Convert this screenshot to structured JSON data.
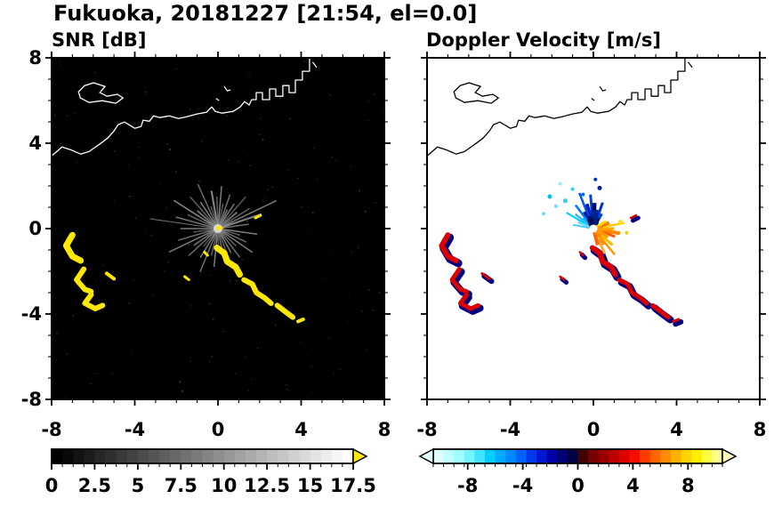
{
  "title": "Fukuoka, 20181227 [21:54, el=0.0]",
  "panels": {
    "snr": {
      "title": "SNR [dB]",
      "bg": "#000000",
      "coast_color": "#ffffff"
    },
    "vel": {
      "title": "Doppler Velocity [m/s]",
      "bg": "#ffffff",
      "coast_color": "#000000"
    }
  },
  "axes": {
    "xlim": [
      -8,
      8
    ],
    "ylim": [
      -8,
      8
    ],
    "xtick_values": [
      -8,
      -4,
      0,
      4,
      8
    ],
    "xtick_labels": [
      "-8",
      "-4",
      "0",
      "4",
      "8"
    ],
    "ytick_values": [
      8,
      4,
      0,
      -4,
      -8
    ],
    "ytick_labels": [
      "8",
      "4",
      "0",
      "-4",
      "-8"
    ],
    "minor_step": 1
  },
  "colorbars": {
    "snr": {
      "range": [
        0,
        17.5
      ],
      "label_values": [
        0,
        2.5,
        5,
        7.5,
        10,
        12.5,
        15,
        17.5
      ],
      "labels": [
        "0",
        "2.5",
        "5",
        "7.5",
        "10",
        "12.5",
        "15",
        "17.5"
      ],
      "over_arrow": "#ffe800",
      "under_arrow": null,
      "segments": [
        "#000000",
        "#090909",
        "#131313",
        "#1c1c1c",
        "#262626",
        "#2f2f2f",
        "#393939",
        "#424242",
        "#4c4c4c",
        "#555555",
        "#5e5e5e",
        "#686868",
        "#717171",
        "#7b7b7b",
        "#848484",
        "#8e8e8e",
        "#979797",
        "#a1a1a1",
        "#aaaaaa",
        "#b3b3b3",
        "#bdbdbd",
        "#c6c6c6",
        "#d0d0d0",
        "#d9d9d9",
        "#e3e3e3",
        "#ececec",
        "#f6f6f6",
        "#ffffff"
      ]
    },
    "vel": {
      "range": [
        -10.5,
        10.5
      ],
      "label_values": [
        -8,
        -4,
        0,
        4,
        8
      ],
      "labels": [
        "-8",
        "-4",
        "0",
        "4",
        "8"
      ],
      "over_arrow": "#ffffbb",
      "under_arrow": "#e4ffff",
      "segments": [
        "#dfffff",
        "#bfffff",
        "#9ffcff",
        "#73f4ff",
        "#40e4ff",
        "#00ccff",
        "#00aaff",
        "#0088ff",
        "#0062ff",
        "#0038f0",
        "#0016d0",
        "#0000aa",
        "#000077",
        "#000044",
        "#440000",
        "#770000",
        "#990000",
        "#bb0000",
        "#dd0000",
        "#f50f00",
        "#ff3c00",
        "#ff6600",
        "#ff8c00",
        "#ffb000",
        "#ffd200",
        "#ffee00",
        "#ffff40",
        "#ffff90"
      ]
    }
  },
  "chart_data": {
    "type": "heatmap",
    "title": "Fukuoka, 20181227 [21:54, el=0.0]",
    "station": "Fukuoka",
    "date": "20181227",
    "time": "21:54",
    "elevation_deg": 0.0,
    "panels": [
      {
        "name": "SNR [dB]",
        "xlim": [
          -8,
          8
        ],
        "ylim": [
          -8,
          8
        ],
        "background": "black",
        "colorbar_range": [
          0,
          17.5
        ],
        "colorbar_ticks": [
          0,
          2.5,
          5,
          7.5,
          10,
          12.5,
          15,
          17.5
        ],
        "colormap": "grayscale with yellow over-range"
      },
      {
        "name": "Doppler Velocity [m/s]",
        "xlim": [
          -8,
          8
        ],
        "ylim": [
          -8,
          8
        ],
        "background": "white",
        "colorbar_range": [
          -10.5,
          10.5
        ],
        "colorbar_ticks": [
          -8,
          -4,
          0,
          4,
          8
        ],
        "colormap": "cyan-blue negative / red-orange-yellow positive"
      }
    ],
    "features": [
      {
        "desc": "radar site ground-clutter starburst",
        "x": 0,
        "y": 0
      },
      {
        "desc": "strong echo band (over-range yellow in SNR, red/navy in velocity)",
        "x_range": [
          -7.3,
          -4.6
        ],
        "y_range": [
          -3.8,
          -0.3
        ]
      },
      {
        "desc": "strong diagonal echo band SE of radar",
        "x_range": [
          0,
          4.1
        ],
        "y_range": [
          -4.4,
          -0.9
        ]
      },
      {
        "desc": "near-radar Doppler couplet: negative (blue) NW, positive (orange) SE",
        "x_range": [
          -2.4,
          1.7
        ],
        "y_range": [
          -1.5,
          2.3
        ]
      },
      {
        "desc": "coastline of Fukuoka bay along top of domain",
        "y_range": [
          3.4,
          8
        ]
      }
    ]
  },
  "geometry": {
    "snr_blob_color": "#ffe800",
    "vel_blob_color": "#dd0000",
    "vel_blob_edge": "#000080",
    "coastline": [
      [
        -8,
        3.4
      ],
      [
        -7.5,
        3.82
      ],
      [
        -7.1,
        3.7
      ],
      [
        -6.6,
        3.49
      ],
      [
        -6.2,
        3.61
      ],
      [
        -5.7,
        3.95
      ],
      [
        -5.3,
        4.24
      ],
      [
        -5.0,
        4.57
      ],
      [
        -4.8,
        4.87
      ],
      [
        -4.5,
        4.99
      ],
      [
        -4.2,
        4.82
      ],
      [
        -4.0,
        4.7
      ],
      [
        -3.7,
        4.78
      ],
      [
        -3.6,
        5.08
      ],
      [
        -3.3,
        5.03
      ],
      [
        -3.1,
        5.28
      ],
      [
        -2.8,
        5.2
      ],
      [
        -2.35,
        5.28
      ],
      [
        -1.9,
        5.16
      ],
      [
        -1.5,
        5.24
      ],
      [
        -1.0,
        5.37
      ],
      [
        -0.55,
        5.45
      ],
      [
        -0.3,
        5.7
      ],
      [
        -0.13,
        5.49
      ],
      [
        0.2,
        5.41
      ],
      [
        0.73,
        5.49
      ],
      [
        1.07,
        5.7
      ],
      [
        1.28,
        5.95
      ],
      [
        1.5,
        5.79
      ],
      [
        1.62,
        6.04
      ],
      [
        1.84,
        6.04
      ],
      [
        1.84,
        6.37
      ],
      [
        2.14,
        6.37
      ],
      [
        2.14,
        6.04
      ],
      [
        2.48,
        6.04
      ],
      [
        2.48,
        6.54
      ],
      [
        2.78,
        6.54
      ],
      [
        2.78,
        6.2
      ],
      [
        3.12,
        6.2
      ],
      [
        3.12,
        6.7
      ],
      [
        3.42,
        6.7
      ],
      [
        3.42,
        6.37
      ],
      [
        3.72,
        6.37
      ],
      [
        3.72,
        6.96
      ],
      [
        4.06,
        6.96
      ],
      [
        4.06,
        7.37
      ],
      [
        4.4,
        7.37
      ],
      [
        4.4,
        8.0
      ]
    ],
    "island": [
      [
        -6.71,
        6.41
      ],
      [
        -6.41,
        6.7
      ],
      [
        -5.98,
        6.83
      ],
      [
        -5.43,
        6.66
      ],
      [
        -5.68,
        6.37
      ],
      [
        -5.34,
        6.2
      ],
      [
        -4.83,
        6.29
      ],
      [
        -4.57,
        6.12
      ],
      [
        -4.91,
        5.87
      ],
      [
        -5.56,
        5.99
      ],
      [
        -6.2,
        5.91
      ],
      [
        -6.62,
        6.12
      ]
    ],
    "coast_extras": [
      [
        [
          0.3,
          6.66
        ],
        [
          0.45,
          6.45
        ],
        [
          0.6,
          6.5
        ]
      ],
      [
        [
          4.55,
          7.8
        ],
        [
          4.75,
          7.55
        ]
      ],
      [
        [
          -0.1,
          6.1
        ],
        [
          0.05,
          6.0
        ]
      ]
    ],
    "snr_streaks": [
      [
        8,
        1.5,
        1.5,
        "#8a8a8a"
      ],
      [
        18,
        2.2,
        2,
        "#a8a8a8"
      ],
      [
        25,
        3.1,
        1.5,
        "#9a9a9a"
      ],
      [
        32,
        1.8,
        1.5,
        "#7a7a7a"
      ],
      [
        40,
        1.2,
        2,
        "#8f8f8f"
      ],
      [
        48,
        2.0,
        1.5,
        "#6f6f6f"
      ],
      [
        56,
        1.4,
        1.5,
        "#999999"
      ],
      [
        63,
        1.0,
        2,
        "#7f7f7f"
      ],
      [
        70,
        1.7,
        1.5,
        "#8a8a8a"
      ],
      [
        78,
        1.2,
        1.5,
        "#6a6a6a"
      ],
      [
        85,
        2.0,
        1.5,
        "#9f9f9f"
      ],
      [
        92,
        1.5,
        1.5,
        "#7a7a7a"
      ],
      [
        100,
        1.8,
        2,
        "#ababab"
      ],
      [
        108,
        1.1,
        1.5,
        "#6a6a6a"
      ],
      [
        115,
        2.3,
        1.5,
        "#8a8a8a"
      ],
      [
        124,
        1.5,
        1.5,
        "#9a9a9a"
      ],
      [
        132,
        2.0,
        1.5,
        "#7a7a7a"
      ],
      [
        140,
        1.3,
        2,
        "#8a8a8a"
      ],
      [
        148,
        2.5,
        1.5,
        "#ababab"
      ],
      [
        156,
        1.6,
        1.5,
        "#7a7a7a"
      ],
      [
        165,
        2.1,
        1.5,
        "#8f8f8f"
      ],
      [
        172,
        3.3,
        1.2,
        "#7a7a7a"
      ],
      [
        180,
        1.8,
        1.5,
        "#9a9a9a"
      ],
      [
        188,
        1.2,
        1.5,
        "#6a6a6a"
      ],
      [
        196,
        2.0,
        1.5,
        "#8a8a8a"
      ],
      [
        205,
        2.6,
        1.5,
        "#9a9a9a"
      ],
      [
        214,
        1.4,
        2,
        "#7a7a7a"
      ],
      [
        222,
        1.9,
        1.5,
        "#8a8a8a"
      ],
      [
        230,
        1.1,
        1.5,
        "#6a6a6a"
      ],
      [
        238,
        1.6,
        1.5,
        "#9a9a9a"
      ],
      [
        247,
        2.2,
        1.5,
        "#8a8a8a"
      ],
      [
        256,
        1.3,
        1.5,
        "#7a7a7a"
      ],
      [
        264,
        1.8,
        1.5,
        "#9a9a9a"
      ],
      [
        272,
        1.1,
        1.5,
        "#6a6a6a"
      ],
      [
        281,
        1.6,
        1.5,
        "#8a8a8a"
      ],
      [
        290,
        2.0,
        1.5,
        "#7a7a7a"
      ],
      [
        299,
        1.3,
        1.5,
        "#9a9a9a"
      ],
      [
        308,
        1.7,
        1.5,
        "#8a8a8a"
      ],
      [
        317,
        1.2,
        1.5,
        "#7a7a7a"
      ],
      [
        326,
        2.0,
        1.5,
        "#9a9a9a"
      ],
      [
        335,
        1.5,
        1.5,
        "#8a8a8a"
      ],
      [
        344,
        1.1,
        1.5,
        "#7a7a7a"
      ],
      [
        352,
        1.9,
        1.5,
        "#9a9a9a"
      ]
    ],
    "snr_blobs": [
      [
        7,
        [
          [
            -7.0,
            -0.3
          ],
          [
            -7.3,
            -0.8
          ],
          [
            -7.0,
            -1.3
          ],
          [
            -6.6,
            -1.5
          ]
        ]
      ],
      [
        6,
        [
          [
            -6.45,
            -1.9
          ],
          [
            -6.8,
            -2.4
          ],
          [
            -6.4,
            -2.85
          ],
          [
            -6.1,
            -2.95
          ]
        ]
      ],
      [
        6,
        [
          [
            -6.1,
            -3.1
          ],
          [
            -6.4,
            -3.5
          ],
          [
            -5.9,
            -3.75
          ],
          [
            -5.55,
            -3.6
          ]
        ]
      ],
      [
        4,
        [
          [
            -5.35,
            -2.1
          ],
          [
            -5.0,
            -2.35
          ]
        ]
      ],
      [
        7,
        [
          [
            -0.05,
            -0.9
          ],
          [
            0.3,
            -1.15
          ],
          [
            0.45,
            -1.55
          ],
          [
            0.85,
            -1.8
          ],
          [
            1.05,
            -2.15
          ]
        ]
      ],
      [
        6,
        [
          [
            1.25,
            -2.4
          ],
          [
            1.65,
            -2.6
          ],
          [
            1.85,
            -3.0
          ],
          [
            2.25,
            -3.25
          ],
          [
            2.55,
            -3.5
          ]
        ]
      ],
      [
        6,
        [
          [
            2.85,
            -3.6
          ],
          [
            3.25,
            -3.9
          ],
          [
            3.6,
            -4.15
          ]
        ]
      ],
      [
        4,
        [
          [
            3.85,
            -4.35
          ],
          [
            4.1,
            -4.25
          ]
        ]
      ],
      [
        3,
        [
          [
            -0.65,
            -1.1
          ],
          [
            -0.5,
            -1.25
          ]
        ]
      ],
      [
        3,
        [
          [
            -1.6,
            -2.25
          ],
          [
            -1.4,
            -2.4
          ]
        ]
      ],
      [
        3,
        [
          [
            1.8,
            0.5
          ],
          [
            2.05,
            0.62
          ]
        ]
      ]
    ],
    "vel_streaks": [
      [
        95,
        1.6,
        3,
        "#0044dd"
      ],
      [
        105,
        1.2,
        4,
        "#0022bb"
      ],
      [
        112,
        1.8,
        2.5,
        "#0055ee"
      ],
      [
        120,
        0.9,
        4,
        "#001a99"
      ],
      [
        128,
        1.4,
        2.5,
        "#0077ff"
      ],
      [
        135,
        0.7,
        3,
        "#00aaff"
      ],
      [
        142,
        1.1,
        2.5,
        "#33bbff"
      ],
      [
        150,
        1.5,
        2,
        "#00ccff"
      ],
      [
        158,
        0.8,
        2.5,
        "#66ddff"
      ],
      [
        88,
        1.2,
        5,
        "#000d66"
      ],
      [
        80,
        0.9,
        4,
        "#001f8f"
      ],
      [
        70,
        1.3,
        3,
        "#0033cc"
      ],
      [
        60,
        0.8,
        3,
        "#0044dd"
      ],
      [
        170,
        1.0,
        2,
        "#44ccff"
      ],
      [
        75,
        0.55,
        8,
        "#000d55"
      ],
      [
        95,
        0.6,
        8,
        "#001166"
      ],
      [
        85,
        0.85,
        7,
        "#002288"
      ],
      [
        110,
        0.5,
        7,
        "#000d55"
      ],
      [
        -10,
        1.3,
        4,
        "#ff8800"
      ],
      [
        0,
        1.0,
        3,
        "#ffaa00"
      ],
      [
        10,
        1.5,
        2.5,
        "#ffcc00"
      ],
      [
        20,
        0.8,
        4,
        "#ff7700"
      ],
      [
        -20,
        1.1,
        3,
        "#ff5500"
      ],
      [
        -30,
        0.8,
        5,
        "#ff9900"
      ],
      [
        -40,
        1.2,
        3,
        "#ffbb00"
      ],
      [
        -55,
        0.9,
        4,
        "#ff8800"
      ],
      [
        -65,
        1.3,
        3,
        "#ffaa33"
      ],
      [
        -50,
        1.6,
        2.5,
        "#ff9900"
      ],
      [
        30,
        0.7,
        3,
        "#ffdd00"
      ],
      [
        -75,
        0.8,
        4,
        "#ff6600"
      ],
      [
        -35,
        0.5,
        8,
        "#ff8800"
      ],
      [
        -15,
        0.45,
        8,
        "#ff9900"
      ]
    ],
    "vel_dots": [
      [
        -1.35,
        1.3,
        2.5,
        "#33ccff"
      ],
      [
        -1.8,
        1.05,
        2,
        "#66e0ff"
      ],
      [
        -2.1,
        1.5,
        2.5,
        "#00bbff"
      ],
      [
        -1.0,
        1.85,
        2,
        "#33ccff"
      ],
      [
        -2.4,
        0.7,
        2,
        "#66e0ff"
      ],
      [
        -1.6,
        2.1,
        2,
        "#99e8ff"
      ],
      [
        0.3,
        1.9,
        2.5,
        "#001a99"
      ],
      [
        0.1,
        2.3,
        2,
        "#0033cc"
      ],
      [
        1.3,
        0.3,
        2.5,
        "#ffdd00"
      ],
      [
        1.6,
        -0.2,
        2,
        "#ffcc00"
      ],
      [
        -0.5,
        1.6,
        2,
        "#0066ee"
      ]
    ]
  }
}
